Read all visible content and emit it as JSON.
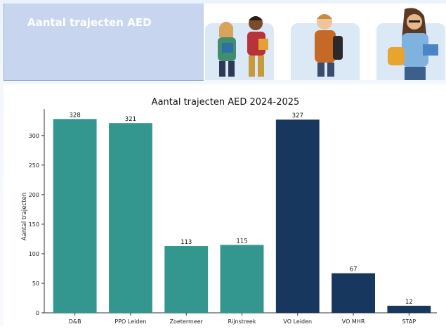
{
  "banner": {
    "title": "Aantal trajecten AED",
    "background": "#c7d6ee",
    "icons": [
      "girl-student-icon",
      "boy-student-icon",
      "boy-backpack-icon",
      "woman-student-icon"
    ]
  },
  "chart_data": {
    "type": "bar",
    "title": "Aantal trajecten AED 2024-2025",
    "xlabel": "",
    "ylabel": "Aantal trajecten",
    "categories": [
      "D&B",
      "PPO Leiden",
      "Zoetermeer",
      "Rijnstreek",
      "VO Leiden",
      "VO MHR",
      "STAP"
    ],
    "values": [
      328,
      321,
      113,
      115,
      327,
      67,
      12
    ],
    "bar_colors": [
      "#33978f",
      "#33978f",
      "#33978f",
      "#33978f",
      "#17375e",
      "#17375e",
      "#17375e"
    ],
    "ylim": [
      0,
      345
    ],
    "yticks": [
      0,
      50,
      100,
      150,
      200,
      250,
      300
    ],
    "grid": false,
    "legend": "none"
  }
}
